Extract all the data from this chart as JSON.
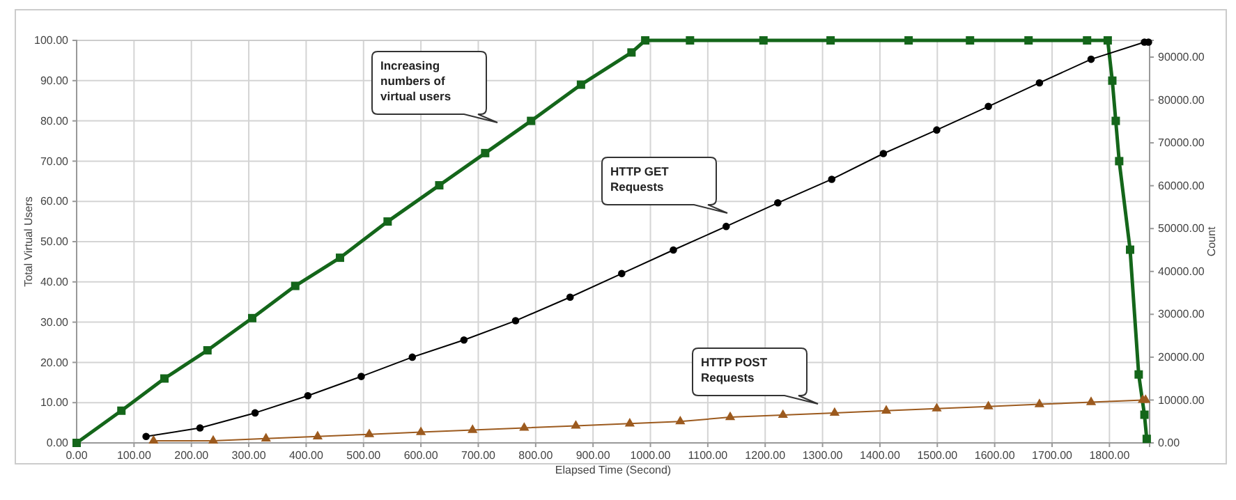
{
  "chart_data": {
    "type": "line",
    "xlabel": "Elapsed Time (Second)",
    "ylabel": "Total Virtual Users",
    "y2label": "Count",
    "xlim": [
      0,
      1870
    ],
    "xticks": [
      {
        "value": 0,
        "label": "0.00"
      },
      {
        "value": 100,
        "label": "100.00"
      },
      {
        "value": 200,
        "label": "200.00"
      },
      {
        "value": 300,
        "label": "300.00"
      },
      {
        "value": 400,
        "label": "400.00"
      },
      {
        "value": 500,
        "label": "500.00"
      },
      {
        "value": 600,
        "label": "600.00"
      },
      {
        "value": 700,
        "label": "700.00"
      },
      {
        "value": 800,
        "label": "800.00"
      },
      {
        "value": 900,
        "label": "900.00"
      },
      {
        "value": 1000,
        "label": "1000.00"
      },
      {
        "value": 1100,
        "label": "1100.00"
      },
      {
        "value": 1200,
        "label": "1200.00"
      },
      {
        "value": 1300,
        "label": "1300.00"
      },
      {
        "value": 1400,
        "label": "1400.00"
      },
      {
        "value": 1500,
        "label": "1500.00"
      },
      {
        "value": 1600,
        "label": "1600.00"
      },
      {
        "value": 1700,
        "label": "1700.00"
      },
      {
        "value": 1800,
        "label": "1800.00"
      }
    ],
    "ylim": [
      0,
      100
    ],
    "yticks": [
      {
        "value": 0,
        "label": "0.00"
      },
      {
        "value": 10,
        "label": "10.00"
      },
      {
        "value": 20,
        "label": "20.00"
      },
      {
        "value": 30,
        "label": "30.00"
      },
      {
        "value": 40,
        "label": "40.00"
      },
      {
        "value": 50,
        "label": "50.00"
      },
      {
        "value": 60,
        "label": "60.00"
      },
      {
        "value": 70,
        "label": "70.00"
      },
      {
        "value": 80,
        "label": "80.00"
      },
      {
        "value": 90,
        "label": "90.00"
      },
      {
        "value": 100,
        "label": "100.00"
      }
    ],
    "y2lim": [
      0,
      93900
    ],
    "y2ticks": [
      {
        "value": 0,
        "label": "0.00"
      },
      {
        "value": 10000,
        "label": "10000.00"
      },
      {
        "value": 20000,
        "label": "20000.00"
      },
      {
        "value": 30000,
        "label": "30000.00"
      },
      {
        "value": 40000,
        "label": "40000.00"
      },
      {
        "value": 50000,
        "label": "50000.00"
      },
      {
        "value": 60000,
        "label": "60000.00"
      },
      {
        "value": 70000,
        "label": "70000.00"
      },
      {
        "value": 80000,
        "label": "80000.00"
      },
      {
        "value": 90000,
        "label": "90000.00"
      }
    ],
    "grid": true,
    "series": [
      {
        "color": "#14661a",
        "marker": "square",
        "x": [
          0,
          78,
          153,
          228,
          306,
          381,
          459,
          542,
          632,
          712,
          792,
          879,
          967,
          991,
          1069,
          1197,
          1314,
          1450,
          1557,
          1659,
          1761,
          1797,
          1805,
          1811,
          1817,
          1836,
          1851,
          1861,
          1865
        ],
        "values": [
          0,
          8,
          16,
          23,
          31,
          39,
          46,
          55,
          64,
          72,
          80,
          89,
          97,
          100,
          100,
          100,
          100,
          100,
          100,
          100,
          100,
          100,
          90,
          80,
          70,
          48,
          17,
          7,
          1
        ]
      },
      {
        "color": "#000000",
        "marker": "circle",
        "axis": "y2",
        "x": [
          121,
          215,
          311,
          403,
          496,
          585,
          675,
          765,
          860,
          950,
          1040,
          1132,
          1222,
          1316,
          1406,
          1499,
          1589,
          1678,
          1768,
          1861,
          1868
        ],
        "values": [
          1500,
          3500,
          7000,
          11000,
          15500,
          20000,
          24000,
          28500,
          34000,
          39500,
          45000,
          50500,
          56000,
          61500,
          67500,
          73000,
          78500,
          84000,
          89500,
          93500,
          93500
        ]
      },
      {
        "color": "#9c5a1e",
        "marker": "triangle",
        "axis": "y2",
        "x": [
          134,
          238,
          330,
          420,
          510,
          600,
          690,
          780,
          870,
          964,
          1052,
          1139,
          1231,
          1321,
          1411,
          1499,
          1589,
          1678,
          1768,
          1858,
          1863
        ],
        "values": [
          500,
          500,
          1000,
          1500,
          2000,
          2500,
          3000,
          3500,
          4000,
          4500,
          5000,
          6000,
          6500,
          7000,
          7500,
          8000,
          8500,
          9000,
          9500,
          10000,
          10000
        ]
      }
    ],
    "annotations": [
      "Increasing numbers of virtual users",
      "HTTP GET Requests",
      "HTTP POST Requests"
    ]
  }
}
